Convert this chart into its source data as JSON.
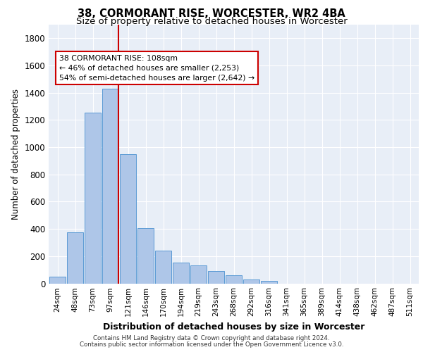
{
  "title1": "38, CORMORANT RISE, WORCESTER, WR2 4BA",
  "title2": "Size of property relative to detached houses in Worcester",
  "xlabel": "Distribution of detached houses by size in Worcester",
  "ylabel": "Number of detached properties",
  "categories": [
    "24sqm",
    "48sqm",
    "73sqm",
    "97sqm",
    "121sqm",
    "146sqm",
    "170sqm",
    "194sqm",
    "219sqm",
    "243sqm",
    "268sqm",
    "292sqm",
    "316sqm",
    "341sqm",
    "365sqm",
    "389sqm",
    "414sqm",
    "438sqm",
    "462sqm",
    "487sqm",
    "511sqm"
  ],
  "values": [
    50,
    375,
    1255,
    1430,
    950,
    405,
    240,
    155,
    130,
    90,
    60,
    30,
    20,
    0,
    0,
    0,
    0,
    0,
    0,
    0,
    0
  ],
  "bar_color": "#aec6e8",
  "bar_edge_color": "#5b9bd5",
  "property_bar_index": 3,
  "annotation_line1": "38 CORMORANT RISE: 108sqm",
  "annotation_line2": "← 46% of detached houses are smaller (2,253)",
  "annotation_line3": "54% of semi-detached houses are larger (2,642) →",
  "annotation_box_color": "#ffffff",
  "annotation_box_edge_color": "#cc0000",
  "red_line_color": "#cc0000",
  "ylim": [
    0,
    1900
  ],
  "yticks": [
    0,
    200,
    400,
    600,
    800,
    1000,
    1200,
    1400,
    1600,
    1800
  ],
  "footer1": "Contains HM Land Registry data © Crown copyright and database right 2024.",
  "footer2": "Contains public sector information licensed under the Open Government Licence v3.0.",
  "bg_color": "#e8eef7",
  "grid_color": "#ffffff"
}
